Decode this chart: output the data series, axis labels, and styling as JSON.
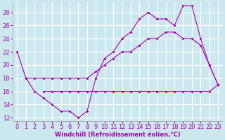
{
  "xlabel": "Windchill (Refroidissement éolien,°C)",
  "bg_color": "#cce8ef",
  "grid_color": "#ffffff",
  "line_color": "#aa00aa",
  "tick_color": "#aa00aa",
  "xlabel_color": "#aa00aa",
  "ylim": [
    11.5,
    29.5
  ],
  "xlim": [
    -0.5,
    23.5
  ],
  "yticks": [
    12,
    14,
    16,
    18,
    20,
    22,
    24,
    26,
    28
  ],
  "xticks": [
    0,
    1,
    2,
    3,
    4,
    5,
    6,
    7,
    8,
    9,
    10,
    11,
    12,
    13,
    14,
    15,
    16,
    17,
    18,
    19,
    20,
    21,
    22,
    23
  ],
  "curve_A_x": [
    0,
    1,
    2,
    3,
    4,
    5,
    6,
    7,
    8,
    9,
    10,
    11,
    12,
    13,
    14,
    15,
    16,
    17,
    18,
    19,
    20,
    21,
    22,
    23
  ],
  "curve_A_y": [
    22,
    18,
    18,
    18,
    18,
    18,
    18,
    18,
    18,
    19,
    20,
    21,
    22,
    22,
    23,
    24,
    24,
    25,
    25,
    24,
    24,
    23,
    20,
    17
  ],
  "curve_B_x": [
    1,
    2,
    3,
    4,
    5,
    6,
    7,
    8,
    9,
    10,
    11,
    12,
    13,
    14,
    15,
    16,
    17,
    18,
    19,
    20,
    21,
    22,
    23
  ],
  "curve_B_y": [
    18,
    16,
    15,
    14,
    13,
    13,
    12,
    13,
    18,
    21,
    22,
    24,
    25,
    27,
    28,
    27,
    27,
    26,
    29,
    29,
    24,
    20,
    17
  ],
  "curve_C_x": [
    3,
    4,
    5,
    6,
    7,
    8,
    9,
    10,
    11,
    12,
    13,
    14,
    15,
    16,
    17,
    18,
    19,
    20,
    21,
    22,
    23
  ],
  "curve_C_y": [
    16,
    16,
    16,
    16,
    16,
    16,
    16,
    16,
    16,
    16,
    16,
    16,
    16,
    16,
    16,
    16,
    16,
    16,
    16,
    16,
    17
  ],
  "tick_fontsize": 6,
  "xlabel_fontsize": 6
}
